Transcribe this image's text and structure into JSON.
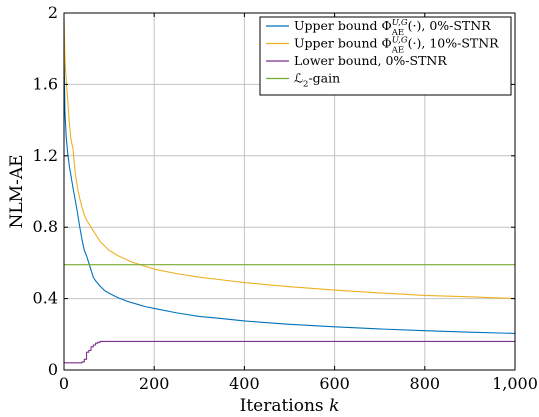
{
  "chart_data": {
    "type": "line",
    "title": "",
    "xlabel_text": "Iterations ",
    "xlabel_var": "k",
    "ylabel": "NLM-AE",
    "xlim": [
      0,
      1000
    ],
    "ylim": [
      0,
      2
    ],
    "xticks": [
      0,
      200,
      400,
      600,
      800,
      1000
    ],
    "xtick_labels": [
      "0",
      "200",
      "400",
      "600",
      "800",
      "1,000"
    ],
    "yticks": [
      0,
      0.4,
      0.8,
      1.2,
      1.6,
      2
    ],
    "ytick_labels": [
      "0",
      "0.4",
      "0.8",
      "1.2",
      "1.6",
      "2"
    ],
    "grid": true,
    "legend_position": "top-right",
    "series": [
      {
        "id": "upper-0",
        "legend": {
          "pre": "Upper bound Φ",
          "sup": "U,G",
          "sub": "AE",
          "post": "(·), 0%-STNR"
        },
        "color": "#0072bd",
        "step": false,
        "x": [
          0,
          2,
          5,
          8,
          12,
          16,
          20,
          25,
          30,
          35,
          40,
          45,
          50,
          55,
          60,
          65,
          70,
          80,
          90,
          100,
          120,
          140,
          160,
          180,
          200,
          250,
          300,
          350,
          400,
          450,
          500,
          600,
          700,
          800,
          900,
          1000
        ],
        "y": [
          1.78,
          1.45,
          1.3,
          1.22,
          1.14,
          1.08,
          1.02,
          0.95,
          0.88,
          0.8,
          0.73,
          0.67,
          0.64,
          0.6,
          0.56,
          0.52,
          0.5,
          0.47,
          0.445,
          0.43,
          0.405,
          0.385,
          0.37,
          0.355,
          0.345,
          0.32,
          0.3,
          0.288,
          0.275,
          0.265,
          0.256,
          0.242,
          0.23,
          0.22,
          0.212,
          0.205
        ]
      },
      {
        "id": "upper-10",
        "legend": {
          "pre": "Upper bound Φ",
          "sup": "U,G",
          "sub": "AE",
          "post": "(·), 10%-STNR"
        },
        "color": "#edb120",
        "step": false,
        "x": [
          0,
          2,
          5,
          8,
          10,
          12,
          15,
          18,
          20,
          22,
          25,
          30,
          35,
          40,
          45,
          50,
          55,
          60,
          70,
          80,
          100,
          120,
          150,
          175,
          200,
          250,
          300,
          350,
          400,
          450,
          500,
          600,
          700,
          800,
          900,
          1000
        ],
        "y": [
          1.97,
          1.75,
          1.62,
          1.52,
          1.45,
          1.38,
          1.3,
          1.26,
          1.24,
          1.18,
          1.1,
          1.02,
          0.96,
          0.91,
          0.87,
          0.84,
          0.82,
          0.8,
          0.76,
          0.72,
          0.67,
          0.64,
          0.605,
          0.585,
          0.565,
          0.54,
          0.52,
          0.505,
          0.49,
          0.478,
          0.467,
          0.448,
          0.432,
          0.418,
          0.41,
          0.4
        ]
      },
      {
        "id": "lower-0",
        "legend": {
          "pre": "Lower bound, 0%-STNR"
        },
        "color": "#7e2f8e",
        "step": true,
        "x": [
          0,
          40,
          45,
          50,
          55,
          60,
          65,
          70,
          75,
          80,
          1000
        ],
        "y": [
          0.04,
          0.045,
          0.06,
          0.1,
          0.11,
          0.13,
          0.14,
          0.15,
          0.155,
          0.16,
          0.16
        ]
      },
      {
        "id": "l2-gain",
        "legend": {
          "pre": "ℒ",
          "sub": "2",
          "post": "-gain"
        },
        "color": "#77ac30",
        "step": false,
        "x": [
          0,
          1000
        ],
        "y": [
          0.59,
          0.59
        ]
      }
    ]
  }
}
